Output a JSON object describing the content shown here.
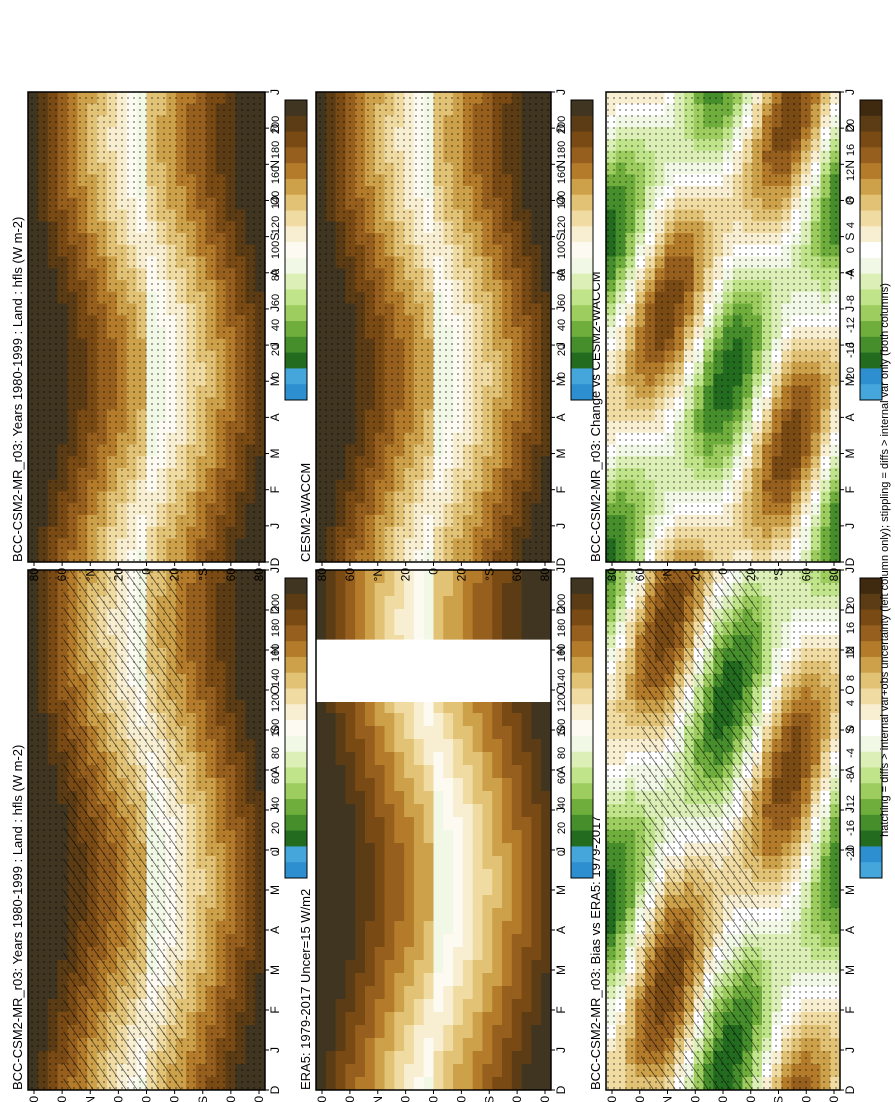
{
  "figure": {
    "footnote": "hatching = diffs > internal var+obs uncertainty (left column only); stippling = diffs > internal var only (both columns)",
    "colors": {
      "abs_scale": [
        "#3f3520",
        "#5b3c14",
        "#7a4a15",
        "#965f1e",
        "#b37b2a",
        "#cda04a",
        "#e2c274",
        "#f0dca3",
        "#f8efd3",
        "#fdfaf1",
        "#f2f8e6",
        "#dbefb6",
        "#bfe48a",
        "#9ccd5e",
        "#6fae3c",
        "#468d2c",
        "#236b1f",
        "#45a6dc",
        "#2d8fd0"
      ],
      "diff_scale": [
        "#3f2a10",
        "#5b3c14",
        "#7a4a15",
        "#965f1e",
        "#b37b2a",
        "#cda04a",
        "#e2c274",
        "#f0dca3",
        "#f8efd3",
        "#ffffff",
        "#f2f8e6",
        "#dbefb6",
        "#bfe48a",
        "#9ccd5e",
        "#6fae3c",
        "#468d2c",
        "#236b1f",
        "#2d8fd0",
        "#45a6dc"
      ],
      "mask": "#5c3f1f",
      "dry_brown": "#6e4a1f"
    },
    "colorbars": [
      {
        "labels": [
          "200",
          "180",
          "160",
          "140",
          "120",
          "100",
          "80",
          "60",
          "40",
          "20",
          "0"
        ]
      },
      {
        "labels": [
          "200",
          "180",
          "160",
          "140",
          "120",
          "100",
          "80",
          "60",
          "40",
          "20",
          "0"
        ]
      },
      {
        "labels": [
          "20",
          "16",
          "12",
          "8",
          "4",
          "0",
          "-4",
          "-8",
          "-12",
          "-16",
          "-20"
        ]
      },
      {
        "labels": [
          "200",
          "180",
          "160",
          "140",
          "120",
          "100",
          "80",
          "60",
          "40",
          "20",
          "0"
        ]
      },
      {
        "labels": [
          "200",
          "180",
          "160",
          "140",
          "120",
          "100",
          "80",
          "60",
          "40",
          "20",
          "0"
        ]
      },
      {
        "labels": [
          "20",
          "16",
          "12",
          "8",
          "4",
          "0",
          "-4",
          "-8",
          "-12",
          "-16",
          "-20"
        ]
      }
    ]
  },
  "chart_data": [
    {
      "type": "heatmap",
      "title": "BCC-CSM2-MR_r03: Years 1980-1999 : Land : hfls (W m-2)",
      "x_categories": [
        "D",
        "J",
        "F",
        "M",
        "A",
        "M",
        "J",
        "J",
        "A",
        "S",
        "O",
        "N",
        "D",
        "J"
      ],
      "y_ticks": [
        "80",
        "60",
        "°N",
        "20",
        "0",
        "20",
        "°S",
        "60",
        "80"
      ],
      "colorbar": [
        "200",
        "180",
        "160",
        "140",
        "120",
        "100",
        "80",
        "60",
        "40",
        "20",
        "0"
      ],
      "hatching": true,
      "stippling": true
    },
    {
      "type": "heatmap",
      "title": "ERA5: 1979-2017 Uncer=15 W/m2",
      "x_categories": [
        "D",
        "J",
        "F",
        "M",
        "A",
        "M",
        "J",
        "J",
        "A",
        "S",
        "O",
        "N",
        "D",
        "J"
      ],
      "y_ticks": [
        "80",
        "60",
        "°N",
        "20",
        "0",
        "20",
        "°S",
        "60",
        "80"
      ],
      "colorbar": [
        "200",
        "180",
        "160",
        "140",
        "120",
        "100",
        "80",
        "60",
        "40",
        "20",
        "0"
      ],
      "missing_months": [
        "F",
        "M"
      ]
    },
    {
      "type": "heatmap",
      "title": "BCC-CSM2-MR_r03: Bias vs ERA5: 1979-2017",
      "x_categories": [
        "D",
        "J",
        "F",
        "M",
        "A",
        "M",
        "J",
        "J",
        "A",
        "S",
        "O",
        "N",
        "D",
        "J"
      ],
      "y_ticks": [
        "80",
        "60",
        "°N",
        "20",
        "0",
        "20",
        "°S",
        "60",
        "80"
      ],
      "colorbar": [
        "20",
        "16",
        "12",
        "8",
        "4",
        "0",
        "-4",
        "-8",
        "-12",
        "-16",
        "-20"
      ],
      "hatching": true,
      "stippling": true
    },
    {
      "type": "heatmap",
      "title": "BCC-CSM2-MR_r03: Years 1980-1999 : Land : hfls (W m-2)",
      "x_categories": [
        "D",
        "J",
        "F",
        "M",
        "A",
        "M",
        "J",
        "J",
        "A",
        "S",
        "O",
        "N",
        "D",
        "J"
      ],
      "y_ticks": [
        "80",
        "60",
        "°N",
        "20",
        "0",
        "20",
        "°S",
        "60",
        "80"
      ],
      "colorbar": [
        "200",
        "180",
        "160",
        "140",
        "120",
        "100",
        "80",
        "60",
        "40",
        "20",
        "0"
      ],
      "stippling": true
    },
    {
      "type": "heatmap",
      "title": "CESM2-WACCM",
      "x_categories": [
        "D",
        "J",
        "F",
        "M",
        "A",
        "M",
        "J",
        "J",
        "A",
        "S",
        "O",
        "N",
        "D",
        "J"
      ],
      "y_ticks": [
        "80",
        "60",
        "°N",
        "20",
        "0",
        "20",
        "°S",
        "60",
        "80"
      ],
      "colorbar": [
        "200",
        "180",
        "160",
        "140",
        "120",
        "100",
        "80",
        "60",
        "40",
        "20",
        "0"
      ],
      "stippling": true
    },
    {
      "type": "heatmap",
      "title": "BCC-CSM2-MR_r03: Change vs CESM2-WACCM",
      "x_categories": [
        "D",
        "J",
        "F",
        "M",
        "A",
        "M",
        "J",
        "J",
        "A",
        "S",
        "O",
        "N",
        "D",
        "J"
      ],
      "y_ticks": [
        "80",
        "60",
        "°N",
        "20",
        "0",
        "20",
        "°S",
        "60",
        "80"
      ],
      "colorbar": [
        "20",
        "16",
        "12",
        "8",
        "4",
        "0",
        "-4",
        "-8",
        "-12",
        "-16",
        "-20"
      ],
      "stippling": true
    }
  ]
}
